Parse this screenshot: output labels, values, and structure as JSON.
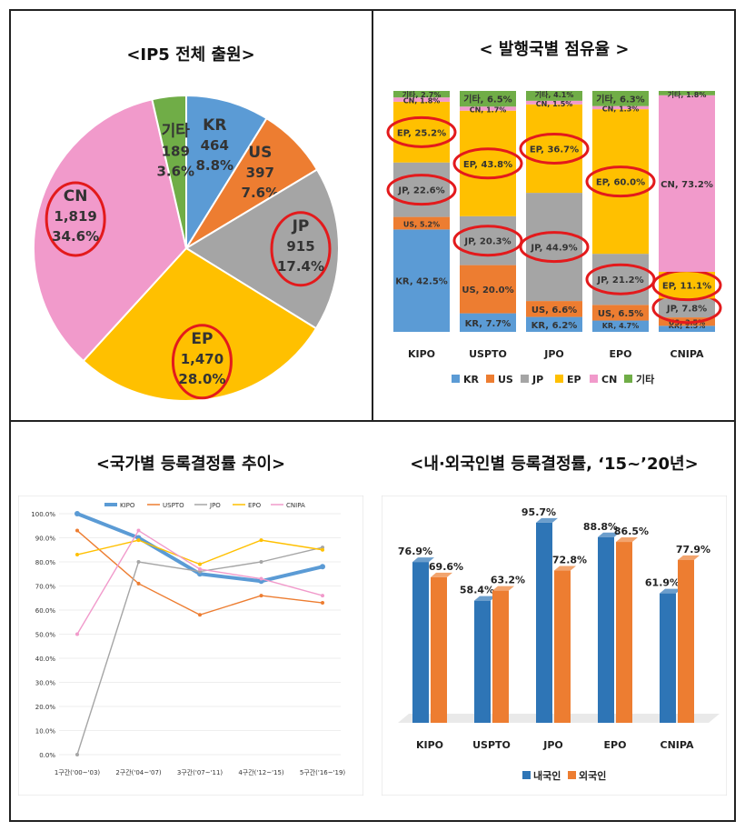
{
  "panels": {
    "pie_title": "<IP5 전체 출원>",
    "share_title": "< 발행국별 점유율 >",
    "line_title": "<국가별 등록결정률 추이>",
    "bar_title": "<내·외국인별 등록결정률, ‘15~’20년>"
  },
  "chart_data": [
    {
      "type": "pie",
      "title": "<IP5 전체 출원>",
      "slices": [
        {
          "name": "KR",
          "value": 464,
          "percent": "8.8%",
          "color": "#5B9BD5",
          "circled": false
        },
        {
          "name": "US",
          "value": 397,
          "percent": "7.6%",
          "color": "#ED7D31",
          "circled": false
        },
        {
          "name": "JP",
          "value": 915,
          "percent": "17.4%",
          "color": "#A5A5A5",
          "circled": true
        },
        {
          "name": "EP",
          "value": 1470,
          "percent": "28.0%",
          "color": "#FFC000",
          "circled": true
        },
        {
          "name": "CN",
          "value": 1819,
          "percent": "34.6%",
          "color": "#F19ACB",
          "circled": true
        },
        {
          "name": "기타",
          "value": 189,
          "percent": "3.6%",
          "color": "#70AD47",
          "circled": false
        }
      ],
      "value_labels": [
        "464",
        "397",
        "915",
        "1,470",
        "1,819",
        "189"
      ]
    },
    {
      "type": "bar",
      "subtype": "stacked-100",
      "title": "< 발행국별 점유율 >",
      "categories": [
        "KIPO",
        "USPTO",
        "JPO",
        "EPO",
        "CNIPA"
      ],
      "series": [
        {
          "name": "KR",
          "color": "#5B9BD5",
          "values": [
            42.5,
            7.7,
            6.2,
            4.7,
            2.5
          ]
        },
        {
          "name": "US",
          "color": "#ED7D31",
          "values": [
            5.2,
            20.0,
            6.6,
            6.5,
            3.5
          ]
        },
        {
          "name": "JP",
          "color": "#A5A5A5",
          "values": [
            22.6,
            20.3,
            44.9,
            21.2,
            7.8
          ]
        },
        {
          "name": "EP",
          "color": "#FFC000",
          "values": [
            25.2,
            43.8,
            36.7,
            60.0,
            11.1
          ]
        },
        {
          "name": "CN",
          "color": "#F19ACB",
          "values": [
            1.8,
            1.7,
            1.5,
            1.3,
            73.2
          ]
        },
        {
          "name": "기타",
          "color": "#70AD47",
          "values": [
            2.7,
            6.5,
            4.1,
            6.3,
            1.8
          ]
        }
      ],
      "segment_labels": [
        [
          "KR, 42.5%",
          "US, 5.2%",
          "JP, 22.6%",
          "EP, 25.2%",
          "CN, 1.8%",
          "기타, 2.7%"
        ],
        [
          "KR, 7.7%",
          "US, 20.0%",
          "JP, 20.3%",
          "EP, 43.8%",
          "CN, 1.7%",
          "기타, 6.5%"
        ],
        [
          "KR, 6.2%",
          "US, 6.6%",
          "JP, 44.9%",
          "EP, 36.7%",
          "CN, 1.5%",
          "기타, 4.1%"
        ],
        [
          "KR, 4.7%",
          "US, 6.5%",
          "JP, 21.2%",
          "EP, 60.0%",
          "CN, 1.3%",
          "기타, 6.3%"
        ],
        [
          "KR, 2.5%",
          "US, 3.5%",
          "JP, 7.8%",
          "EP, 11.1%",
          "CN, 73.2%",
          "기타, 1.8%"
        ]
      ],
      "circled": [
        [
          "JP, 22.6%",
          "EP, 25.2%"
        ],
        [
          "JP, 20.3%",
          "EP, 43.8%"
        ],
        [
          "JP, 44.9%",
          "EP, 36.7%"
        ],
        [
          "JP, 21.2%",
          "EP, 60.0%"
        ],
        [
          "JP, 7.8%",
          "EP, 11.1%"
        ]
      ],
      "legend_position": "bottom"
    },
    {
      "type": "line",
      "title": "<국가별 등록결정률 추이>",
      "x": [
        "1구간('00~'03)",
        "2구간('04~'07)",
        "3구간('07~'11)",
        "4구간('12~'15)",
        "5구간('16~'19)"
      ],
      "series": [
        {
          "name": "KIPO",
          "color": "#5B9BD5",
          "values": [
            100,
            90,
            75,
            72,
            78
          ]
        },
        {
          "name": "USPTO",
          "color": "#ED7D31",
          "values": [
            93,
            71,
            58,
            66,
            63
          ]
        },
        {
          "name": "JPO",
          "color": "#A5A5A5",
          "values": [
            0,
            80,
            76,
            80,
            86
          ]
        },
        {
          "name": "EPO",
          "color": "#FFC000",
          "values": [
            83,
            89,
            79,
            89,
            85
          ]
        },
        {
          "name": "CNIPA",
          "color": "#F19ACB",
          "values": [
            50,
            93,
            77,
            73,
            66
          ]
        }
      ],
      "ylim": [
        0,
        100
      ],
      "yticks": [
        "0.0%",
        "10.0%",
        "20.0%",
        "30.0%",
        "40.0%",
        "50.0%",
        "60.0%",
        "70.0%",
        "80.0%",
        "90.0%",
        "100.0%"
      ],
      "legend_position": "top"
    },
    {
      "type": "bar",
      "title": "<내·외국인별 등록결정률, ‘15~’20년>",
      "categories": [
        "KIPO",
        "USPTO",
        "JPO",
        "EPO",
        "CNIPA"
      ],
      "series": [
        {
          "name": "내국인",
          "color": "#2E75B6",
          "values": [
            76.9,
            58.4,
            95.7,
            88.8,
            61.9
          ]
        },
        {
          "name": "외국인",
          "color": "#ED7D31",
          "values": [
            69.6,
            63.2,
            72.8,
            86.5,
            77.9
          ]
        }
      ],
      "data_labels": [
        [
          "76.9%",
          "58.4%",
          "95.7%",
          "88.8%",
          "61.9%"
        ],
        [
          "69.6%",
          "63.2%",
          "72.8%",
          "86.5%",
          "77.9%"
        ]
      ],
      "ylim": [
        0,
        100
      ],
      "legend_position": "bottom"
    }
  ]
}
